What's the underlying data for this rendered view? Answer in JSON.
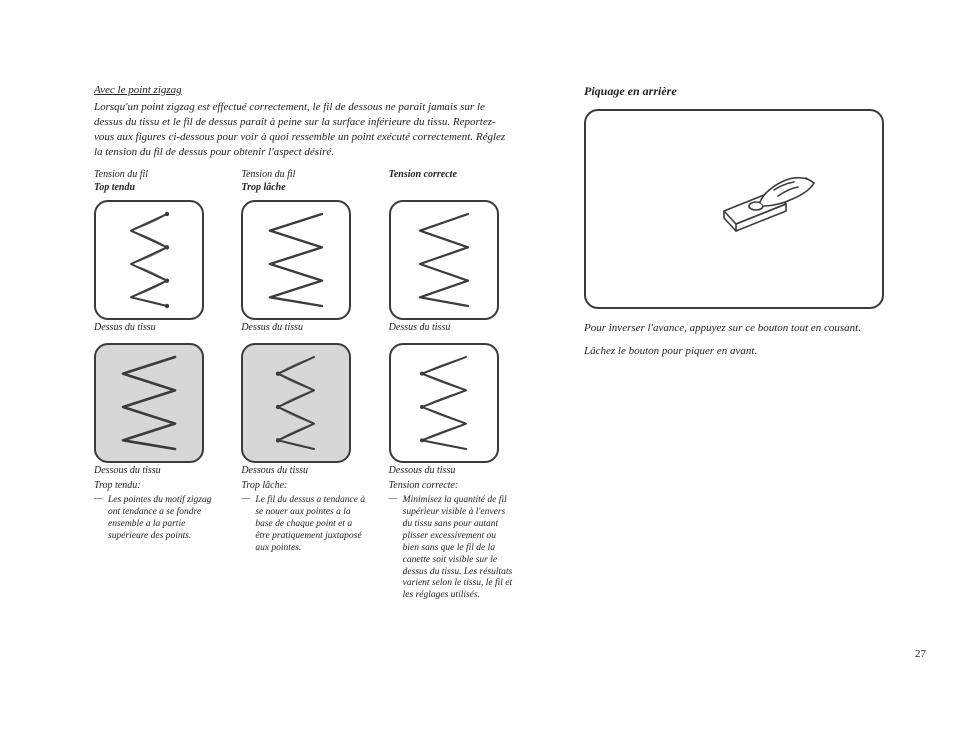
{
  "left": {
    "title": "Avec le point zigzag",
    "intro": "Lorsqu'un point zigzag est effectué correctement, le fil de dessous ne paraît jamais sur le dessus du tissu et le fil de dessus paraît à peine sur la surface inférieure du tissu. Reportez-vous aux figures ci-dessous pour voir à quoi ressemble un point exécuté correctement. Réglez la tension du fil de dessus pour obtenir l'aspect désiré.",
    "columns": [
      {
        "head1": "Tension du fil",
        "head2": "Top tendu",
        "top_caption": "Dessus du tissu",
        "bot_caption": "Dessous du tissu",
        "sub": "Trop tendu:",
        "desc": "Les pointes du motif zigzag ont tendance a se fondre ensemble a la partie supérieure des points.",
        "top_shaded": false,
        "bot_shaded": true,
        "top_svg": "tight-top",
        "bot_svg": "tight-bot"
      },
      {
        "head1": "Tension du fil",
        "head2": "Trop lâche",
        "top_caption": "Dessus du tissu",
        "bot_caption": "Dessous du tissu",
        "sub": "Trop lâche:",
        "desc": "Le fil du dessus a tendance à se nouer aux pointes a la base de chaque point et a être pratiquement juxtaposé aux pointes.",
        "top_shaded": false,
        "bot_shaded": true,
        "top_svg": "loose-top",
        "bot_svg": "loose-bot"
      },
      {
        "head1": "",
        "head2": "Tension correcte",
        "top_caption": "Dessus du tissu",
        "bot_caption": "Dessous du tissu",
        "sub": "Tension correcte:",
        "desc": "Minimisez la quantité de fil supérieur visible à l'envers du tissu sans pour autant plisser excessivement ou bien sans que le fil de la canette soit visible sur le dessus du tissu. Les résultats varient selon le tissu, le fil et les réglages utilisés.",
        "top_shaded": false,
        "bot_shaded": false,
        "top_svg": "correct-top",
        "bot_svg": "correct-bot"
      }
    ]
  },
  "right": {
    "title": "Piquage en arrière",
    "text1": "Pour inverser l'avance, appuyez sur ce bouton tout en cousant.",
    "text2": "Lâchez le bouton pour piquer en avant."
  },
  "page_number": "27",
  "colors": {
    "stroke": "#3b3b3b",
    "shade": "#d7d7d7",
    "fine": "#777777"
  }
}
